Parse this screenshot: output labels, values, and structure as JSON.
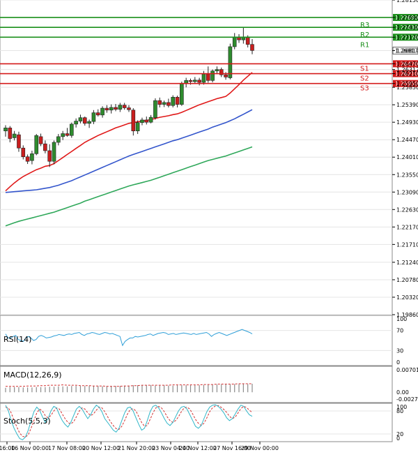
{
  "colors": {
    "resistance": "#1a8f1a",
    "support": "#d41a1a",
    "bull_candle": "#2e8b2e",
    "bear_candle": "#c81e1e",
    "ma_fast": "#e01818",
    "ma_mid": "#3355cc",
    "ma_slow": "#2fa85a",
    "rsi": "#2f9fd8",
    "macd_hist": "#8a8a8a",
    "macd_signal": "#d43030",
    "stoch_k": "#2fb6c8",
    "stoch_d": "#d43030",
    "grid": "#e4e4e4",
    "axis": "#000000"
  },
  "chart_data": [
    {
      "type": "line",
      "title": "",
      "price_axis_ticks": [
        "1.28150",
        "1.27690",
        "1.27430",
        "1.27170",
        "1.26817",
        "1.26470",
        "1.26317",
        "1.26210",
        "1.25950",
        "1.25850",
        "1.25390",
        "1.24930",
        "1.24470",
        "1.24010",
        "1.23550",
        "1.23090",
        "1.22630",
        "1.22170",
        "1.21710",
        "1.21240",
        "1.20780",
        "1.20320",
        "1.19860"
      ],
      "ylim": [
        1.1986,
        1.2815
      ],
      "x_tick_labels": [
        "16:00",
        "16 Nov 00:00",
        "17 Nov 08:00",
        "20 Nov 12:00",
        "21 Nov 20:00",
        "23 Nov 04:00",
        "24 Nov 12:00",
        "27 Nov 16:00",
        "29 Nov 00:00"
      ],
      "last_price": "1.26817",
      "levels": [
        {
          "name": "R3",
          "value": 1.2769,
          "label": "1.27690",
          "kind": "resistance"
        },
        {
          "name": "R2",
          "value": 1.2743,
          "label": "1.27430",
          "kind": "resistance"
        },
        {
          "name": "R1",
          "value": 1.2717,
          "label": "1.27170",
          "kind": "resistance"
        },
        {
          "name": "S1",
          "value": 1.2647,
          "label": "1.26470",
          "kind": "support"
        },
        {
          "name": "S2",
          "value": 1.2621,
          "label": "1.26210",
          "kind": "support"
        },
        {
          "name": "S3",
          "value": 1.2595,
          "label": "1.25950",
          "kind": "support"
        }
      ],
      "candles": [
        {
          "o": 1.247,
          "h": 1.2485,
          "l": 1.2455,
          "c": 1.2478
        },
        {
          "o": 1.2478,
          "h": 1.2483,
          "l": 1.244,
          "c": 1.245
        },
        {
          "o": 1.2452,
          "h": 1.247,
          "l": 1.2445,
          "c": 1.2462
        },
        {
          "o": 1.246,
          "h": 1.2468,
          "l": 1.2415,
          "c": 1.2425
        },
        {
          "o": 1.2425,
          "h": 1.2432,
          "l": 1.2395,
          "c": 1.2402
        },
        {
          "o": 1.2402,
          "h": 1.2408,
          "l": 1.2383,
          "c": 1.239
        },
        {
          "o": 1.2392,
          "h": 1.2418,
          "l": 1.2382,
          "c": 1.241
        },
        {
          "o": 1.241,
          "h": 1.2462,
          "l": 1.2406,
          "c": 1.2458
        },
        {
          "o": 1.2455,
          "h": 1.2463,
          "l": 1.243,
          "c": 1.2436
        },
        {
          "o": 1.2436,
          "h": 1.2445,
          "l": 1.2411,
          "c": 1.2418
        },
        {
          "o": 1.2418,
          "h": 1.2435,
          "l": 1.2375,
          "c": 1.239
        },
        {
          "o": 1.239,
          "h": 1.2445,
          "l": 1.2382,
          "c": 1.244
        },
        {
          "o": 1.244,
          "h": 1.2462,
          "l": 1.2432,
          "c": 1.2455
        },
        {
          "o": 1.2455,
          "h": 1.247,
          "l": 1.2446,
          "c": 1.2463
        },
        {
          "o": 1.2463,
          "h": 1.2478,
          "l": 1.2455,
          "c": 1.2458
        },
        {
          "o": 1.2458,
          "h": 1.2492,
          "l": 1.2452,
          "c": 1.2488
        },
        {
          "o": 1.2488,
          "h": 1.2503,
          "l": 1.2479,
          "c": 1.2496
        },
        {
          "o": 1.2496,
          "h": 1.2513,
          "l": 1.249,
          "c": 1.2505
        },
        {
          "o": 1.2505,
          "h": 1.2508,
          "l": 1.2484,
          "c": 1.249
        },
        {
          "o": 1.249,
          "h": 1.25,
          "l": 1.2478,
          "c": 1.2495
        },
        {
          "o": 1.2495,
          "h": 1.2525,
          "l": 1.2488,
          "c": 1.2518
        },
        {
          "o": 1.2518,
          "h": 1.2527,
          "l": 1.2508,
          "c": 1.2512
        },
        {
          "o": 1.2512,
          "h": 1.2535,
          "l": 1.2505,
          "c": 1.253
        },
        {
          "o": 1.253,
          "h": 1.2538,
          "l": 1.2518,
          "c": 1.2525
        },
        {
          "o": 1.2525,
          "h": 1.254,
          "l": 1.2516,
          "c": 1.2532
        },
        {
          "o": 1.2532,
          "h": 1.2541,
          "l": 1.2522,
          "c": 1.2527
        },
        {
          "o": 1.2527,
          "h": 1.2544,
          "l": 1.252,
          "c": 1.2538
        },
        {
          "o": 1.2538,
          "h": 1.2544,
          "l": 1.2526,
          "c": 1.2531
        },
        {
          "o": 1.2531,
          "h": 1.2538,
          "l": 1.252,
          "c": 1.2526
        },
        {
          "o": 1.2525,
          "h": 1.253,
          "l": 1.2458,
          "c": 1.247
        },
        {
          "o": 1.247,
          "h": 1.2498,
          "l": 1.2462,
          "c": 1.2492
        },
        {
          "o": 1.2492,
          "h": 1.2505,
          "l": 1.2485,
          "c": 1.2499
        },
        {
          "o": 1.2499,
          "h": 1.2508,
          "l": 1.2487,
          "c": 1.2493
        },
        {
          "o": 1.2493,
          "h": 1.2512,
          "l": 1.249,
          "c": 1.2506
        },
        {
          "o": 1.2505,
          "h": 1.2556,
          "l": 1.25,
          "c": 1.255
        },
        {
          "o": 1.255,
          "h": 1.2558,
          "l": 1.2532,
          "c": 1.254
        },
        {
          "o": 1.254,
          "h": 1.255,
          "l": 1.2533,
          "c": 1.2545
        },
        {
          "o": 1.2545,
          "h": 1.2555,
          "l": 1.2532,
          "c": 1.2537
        },
        {
          "o": 1.2537,
          "h": 1.2564,
          "l": 1.2532,
          "c": 1.2559
        },
        {
          "o": 1.2559,
          "h": 1.2563,
          "l": 1.2532,
          "c": 1.254
        },
        {
          "o": 1.254,
          "h": 1.26,
          "l": 1.2536,
          "c": 1.2595
        },
        {
          "o": 1.2595,
          "h": 1.261,
          "l": 1.2585,
          "c": 1.2603
        },
        {
          "o": 1.2603,
          "h": 1.2608,
          "l": 1.2592,
          "c": 1.26
        },
        {
          "o": 1.26,
          "h": 1.2612,
          "l": 1.2594,
          "c": 1.2604
        },
        {
          "o": 1.2604,
          "h": 1.261,
          "l": 1.259,
          "c": 1.2598
        },
        {
          "o": 1.2598,
          "h": 1.2628,
          "l": 1.2592,
          "c": 1.262
        },
        {
          "o": 1.262,
          "h": 1.264,
          "l": 1.2597,
          "c": 1.2603
        },
        {
          "o": 1.2603,
          "h": 1.2632,
          "l": 1.2598,
          "c": 1.2628
        },
        {
          "o": 1.2628,
          "h": 1.264,
          "l": 1.262,
          "c": 1.2632
        },
        {
          "o": 1.2632,
          "h": 1.2637,
          "l": 1.2612,
          "c": 1.2618
        },
        {
          "o": 1.2618,
          "h": 1.2625,
          "l": 1.2605,
          "c": 1.2612
        },
        {
          "o": 1.261,
          "h": 1.27,
          "l": 1.2606,
          "c": 1.2692
        },
        {
          "o": 1.2692,
          "h": 1.2728,
          "l": 1.2685,
          "c": 1.2718
        },
        {
          "o": 1.2718,
          "h": 1.2725,
          "l": 1.2702,
          "c": 1.271
        },
        {
          "o": 1.271,
          "h": 1.2742,
          "l": 1.27,
          "c": 1.2718
        },
        {
          "o": 1.2718,
          "h": 1.2722,
          "l": 1.269,
          "c": 1.2698
        },
        {
          "o": 1.2698,
          "h": 1.2712,
          "l": 1.2672,
          "c": 1.2682
        }
      ],
      "ma_fast": [
        1.2312,
        1.2323,
        1.2333,
        1.2342,
        1.235,
        1.2356,
        1.2362,
        1.2368,
        1.2372,
        1.2377,
        1.2379,
        1.2384,
        1.2392,
        1.24,
        1.2408,
        1.2416,
        1.2424,
        1.2432,
        1.244,
        1.2446,
        1.2452,
        1.2458,
        1.2463,
        1.2468,
        1.2473,
        1.2478,
        1.2482,
        1.2486,
        1.249,
        1.2492,
        1.2494,
        1.2496,
        1.2498,
        1.25,
        1.2503,
        1.2506,
        1.2508,
        1.251,
        1.2513,
        1.2515,
        1.2519,
        1.2524,
        1.2529,
        1.2534,
        1.2539,
        1.2543,
        1.2547,
        1.2551,
        1.2555,
        1.2558,
        1.2561,
        1.257,
        1.2581,
        1.2592,
        1.2604,
        1.2614,
        1.2624
      ],
      "ma_mid": [
        1.2308,
        1.2309,
        1.231,
        1.2311,
        1.2312,
        1.2313,
        1.2314,
        1.2315,
        1.2317,
        1.2319,
        1.2321,
        1.2324,
        1.2327,
        1.2331,
        1.2335,
        1.2339,
        1.2344,
        1.2349,
        1.2354,
        1.2359,
        1.2364,
        1.2369,
        1.2374,
        1.2379,
        1.2384,
        1.2389,
        1.2394,
        1.2399,
        1.2404,
        1.2408,
        1.2412,
        1.2416,
        1.242,
        1.2424,
        1.2428,
        1.2432,
        1.2436,
        1.244,
        1.2444,
        1.2447,
        1.2451,
        1.2455,
        1.2459,
        1.2463,
        1.2467,
        1.2471,
        1.2475,
        1.248,
        1.2484,
        1.2488,
        1.2492,
        1.2497,
        1.2502,
        1.2508,
        1.2514,
        1.252,
        1.2526
      ],
      "ma_slow": [
        1.222,
        1.2224,
        1.2228,
        1.2232,
        1.2235,
        1.2238,
        1.2241,
        1.2244,
        1.2247,
        1.225,
        1.2253,
        1.2256,
        1.226,
        1.2264,
        1.2268,
        1.2272,
        1.2276,
        1.228,
        1.2285,
        1.2289,
        1.2293,
        1.2297,
        1.2301,
        1.2305,
        1.2309,
        1.2313,
        1.2317,
        1.2321,
        1.2325,
        1.2328,
        1.2331,
        1.2334,
        1.2337,
        1.234,
        1.2344,
        1.2348,
        1.2352,
        1.2356,
        1.236,
        1.2364,
        1.2368,
        1.2372,
        1.2376,
        1.238,
        1.2384,
        1.2388,
        1.2392,
        1.2395,
        1.2398,
        1.2401,
        1.2404,
        1.2408,
        1.2412,
        1.2416,
        1.242,
        1.2424,
        1.2428
      ]
    },
    {
      "type": "line",
      "title": "RSI(14)",
      "y_ticks": [
        "100",
        "70",
        "30",
        "0"
      ],
      "ylim": [
        0,
        100
      ],
      "values": [
        63,
        55,
        55,
        58,
        60,
        52,
        50,
        48,
        55,
        58,
        55,
        50,
        52,
        58,
        60,
        58,
        55,
        56,
        57,
        59,
        60,
        62,
        61,
        60,
        62,
        63,
        62,
        64,
        65,
        66,
        62,
        60,
        63,
        64,
        66,
        65,
        63,
        62,
        64,
        66,
        65,
        63,
        64,
        62,
        60,
        58,
        40,
        48,
        52,
        55,
        55,
        58,
        57,
        58,
        59,
        60,
        62,
        63,
        60,
        62,
        64,
        65,
        66,
        65,
        62,
        63,
        64,
        62,
        63,
        64,
        65,
        64,
        63,
        62,
        64,
        62,
        63,
        64,
        65,
        66,
        63,
        58,
        62,
        64,
        66,
        64,
        62,
        60,
        62,
        64,
        66,
        68,
        70,
        72,
        70,
        68,
        66,
        63
      ]
    },
    {
      "type": "bar",
      "title": "MACD(12,26,9)",
      "y_ticks": [
        "0.007013",
        "0.00",
        "-0.002785"
      ],
      "ylim": [
        -0.002785,
        0.007013
      ],
      "histogram": [
        0.0012,
        0.0014,
        0.0014,
        0.0014,
        0.0013,
        0.0013,
        0.0013,
        0.0014,
        0.0014,
        0.0014,
        0.0015,
        0.0015,
        0.0016,
        0.0016,
        0.0016,
        0.0017,
        0.0017,
        0.0017,
        0.0017,
        0.0017,
        0.0017,
        0.0017,
        0.0016,
        0.0017,
        0.0017,
        0.0017,
        0.0017,
        0.0018,
        0.0018,
        0.0019,
        0.0019,
        0.0019,
        0.0019,
        0.0019,
        0.0018,
        0.0018,
        0.0019,
        0.0018,
        0.0018,
        0.0019,
        0.0019,
        0.0019,
        0.0019,
        0.0019,
        0.0019,
        0.002,
        0.002,
        0.0021,
        0.0021,
        0.0021,
        0.0021,
        0.0021,
        0.0022,
        0.0022,
        0.0022,
        0.0022,
        0.0023
      ],
      "signal": [
        0.0016,
        0.0016,
        0.0016,
        0.0016,
        0.0016,
        0.0017,
        0.0017,
        0.0017,
        0.0018,
        0.0018,
        0.0019,
        0.0019,
        0.0019,
        0.002,
        0.0019,
        0.0019,
        0.0019,
        0.0018,
        0.0018,
        0.0018,
        0.0017,
        0.0017,
        0.0017,
        0.0016,
        0.0016,
        0.0016,
        0.0016,
        0.0017,
        0.0017,
        0.0018,
        0.0018,
        0.0019,
        0.0019,
        0.0019,
        0.0019,
        0.0019,
        0.0019,
        0.0019,
        0.002,
        0.002,
        0.002,
        0.002,
        0.002,
        0.002,
        0.002,
        0.0021,
        0.0021,
        0.0021,
        0.0022,
        0.0022,
        0.0022,
        0.0022,
        0.0022,
        0.0023,
        0.0023,
        0.0023,
        0.0023
      ]
    },
    {
      "type": "line",
      "title": "Stoch(5,5,3)",
      "y_ticks": [
        "100",
        "80",
        "20",
        "0"
      ],
      "ylim": [
        0,
        100
      ],
      "k": [
        95,
        80,
        55,
        35,
        20,
        8,
        5,
        12,
        30,
        55,
        78,
        90,
        82,
        65,
        50,
        60,
        80,
        92,
        88,
        70,
        55,
        45,
        38,
        50,
        68,
        85,
        92,
        85,
        72,
        60,
        70,
        85,
        95,
        90,
        78,
        60,
        50,
        40,
        30,
        25,
        35,
        55,
        75,
        88,
        90,
        80,
        62,
        45,
        30,
        35,
        55,
        78,
        92,
        95,
        88,
        75,
        60,
        48,
        42,
        50,
        65,
        80,
        90,
        92,
        85,
        70,
        55,
        40,
        35,
        42,
        60,
        78,
        90,
        95,
        96,
        92,
        85,
        75,
        62,
        55,
        60,
        72,
        85,
        95,
        92,
        80,
        70,
        66
      ],
      "d": [
        90,
        88,
        75,
        55,
        38,
        22,
        14,
        12,
        18,
        35,
        55,
        75,
        85,
        80,
        68,
        62,
        68,
        80,
        88,
        85,
        72,
        60,
        50,
        46,
        52,
        65,
        80,
        88,
        85,
        75,
        68,
        72,
        82,
        90,
        88,
        78,
        65,
        52,
        42,
        34,
        32,
        40,
        55,
        72,
        84,
        86,
        80,
        65,
        50,
        40,
        42,
        58,
        75,
        88,
        92,
        88,
        78,
        65,
        55,
        50,
        55,
        65,
        78,
        88,
        90,
        85,
        72,
        58,
        48,
        42,
        48,
        62,
        78,
        88,
        93,
        94,
        90,
        84,
        76,
        66,
        60,
        64,
        75,
        86,
        92,
        89,
        82,
        76
      ]
    }
  ]
}
